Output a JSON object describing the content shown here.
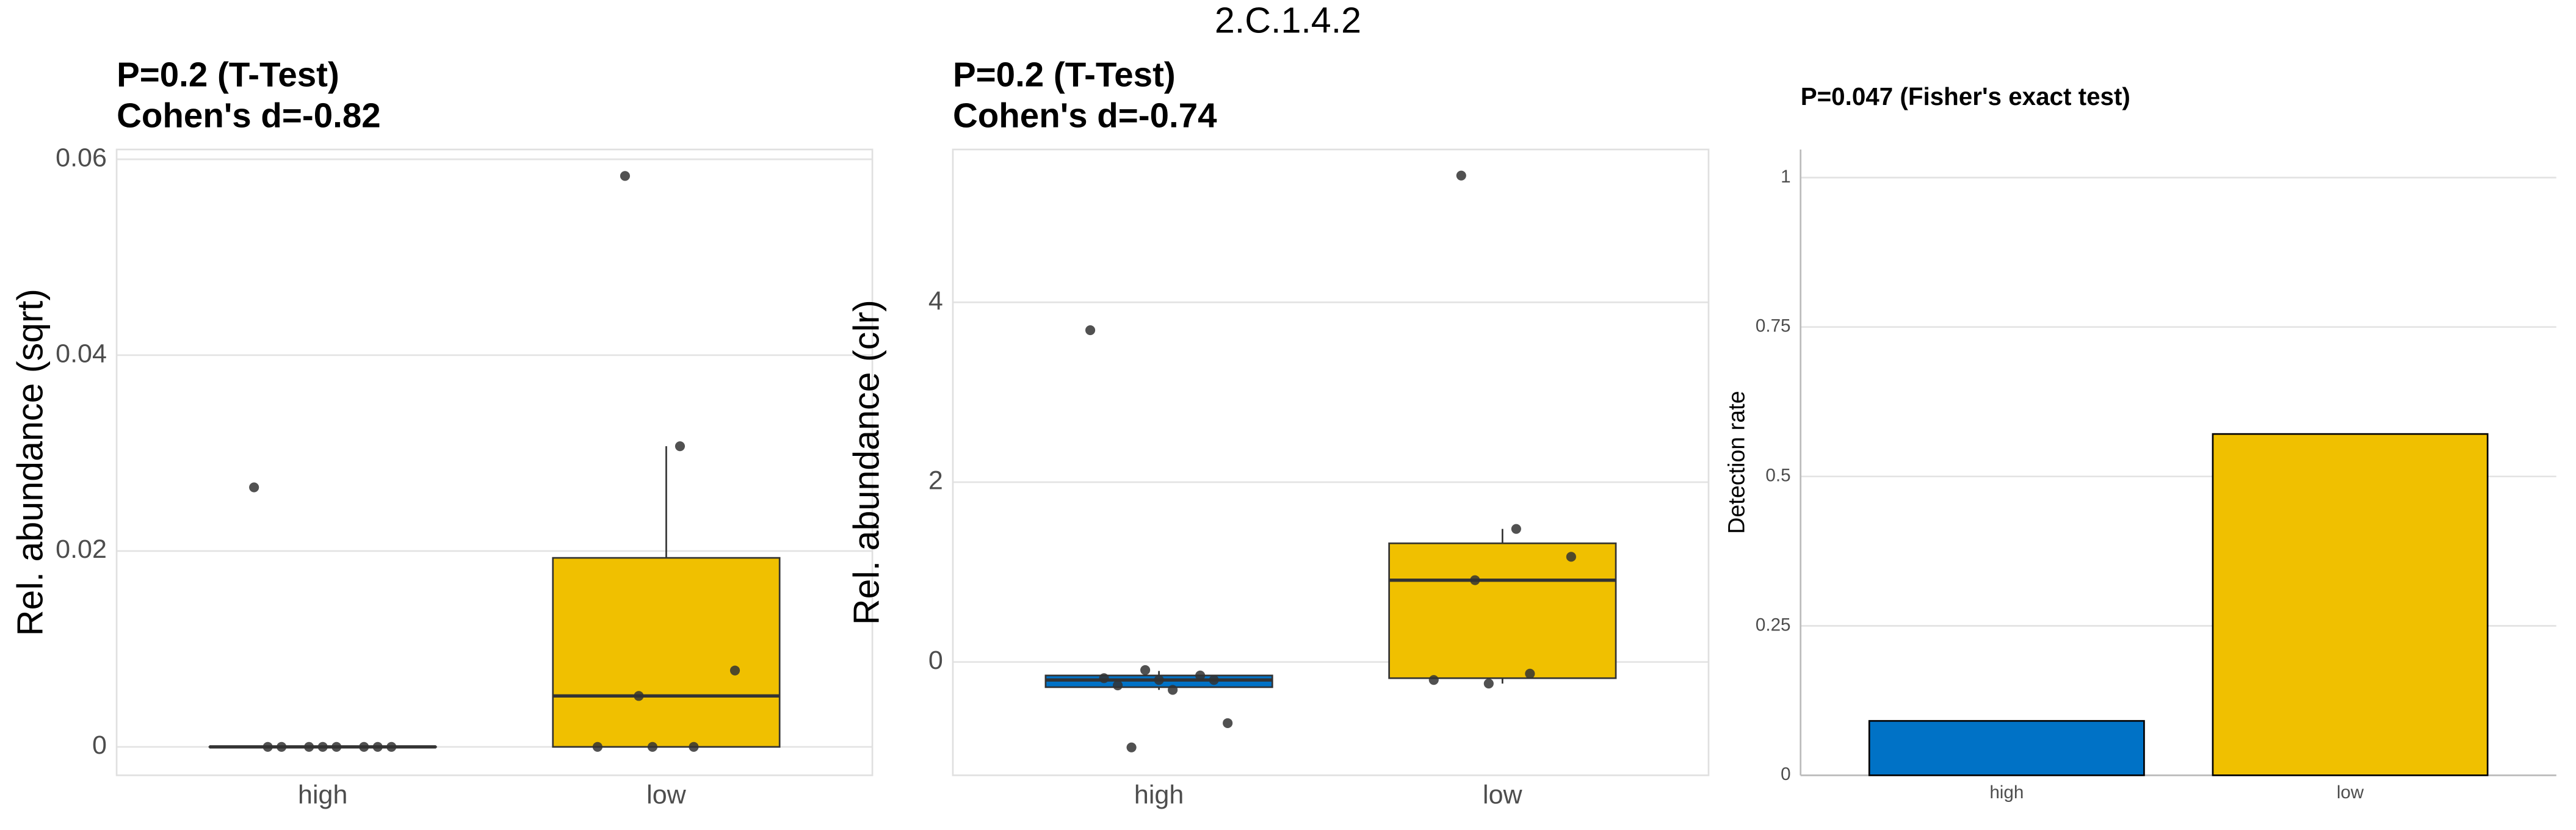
{
  "title": "2.C.1.4.2",
  "chart_data": [
    {
      "type": "box",
      "title": "P=0.2 (T-Test)",
      "subtitle": "Cohen's d=-0.82",
      "ylabel": "Rel. abundance (sqrt)",
      "categories": [
        "high",
        "low"
      ],
      "colors": [
        "#0072c6",
        "#f0c000"
      ],
      "boxes": [
        {
          "whisker_low": 0,
          "q1": 0,
          "median": 0,
          "q3": 0,
          "whisker_high": 0
        },
        {
          "whisker_low": 0,
          "q1": 0,
          "median": 0.0052,
          "q3": 0.0193,
          "whisker_high": 0.0307
        }
      ],
      "points": [
        [
          0.0265,
          0,
          0,
          0,
          0,
          0,
          0,
          0,
          0
        ],
        [
          0.0583,
          0.0307,
          0.0078,
          0.0052,
          0,
          0,
          0
        ]
      ],
      "ylim": [
        -0.0029,
        0.061
      ],
      "yticks": [
        0,
        0.02,
        0.04,
        0.06
      ],
      "grid": true
    },
    {
      "type": "box",
      "title": "P=0.2 (T-Test)",
      "subtitle": "Cohen's d=-0.74",
      "ylabel": "Rel. abundance (clr)",
      "categories": [
        "high",
        "low"
      ],
      "colors": [
        "#0072c6",
        "#f0c000"
      ],
      "boxes": [
        {
          "whisker_low": -0.31,
          "q1": -0.28,
          "median": -0.2,
          "q3": -0.15,
          "whisker_high": -0.1
        },
        {
          "whisker_low": -0.24,
          "q1": -0.18,
          "median": 0.91,
          "q3": 1.32,
          "whisker_high": 1.48
        }
      ],
      "points": [
        [
          3.69,
          -0.09,
          -0.15,
          -0.18,
          -0.2,
          -0.2,
          -0.26,
          -0.31,
          -0.68,
          -0.95
        ],
        [
          5.41,
          1.48,
          1.17,
          0.91,
          -0.13,
          -0.2,
          -0.24
        ]
      ],
      "ylim": [
        -1.26,
        5.7
      ],
      "yticks": [
        0,
        2,
        4
      ],
      "grid": true
    },
    {
      "type": "bar",
      "title": "P=0.047 (Fisher's exact test)",
      "ylabel": "Detection rate",
      "categories": [
        "high",
        "low"
      ],
      "colors": [
        "#0072c6",
        "#f0c000"
      ],
      "values": [
        0.091,
        0.571
      ],
      "ylim": [
        0,
        1.047
      ],
      "yticks": [
        0,
        0.25,
        0.5,
        0.75,
        1
      ],
      "grid": true
    }
  ]
}
